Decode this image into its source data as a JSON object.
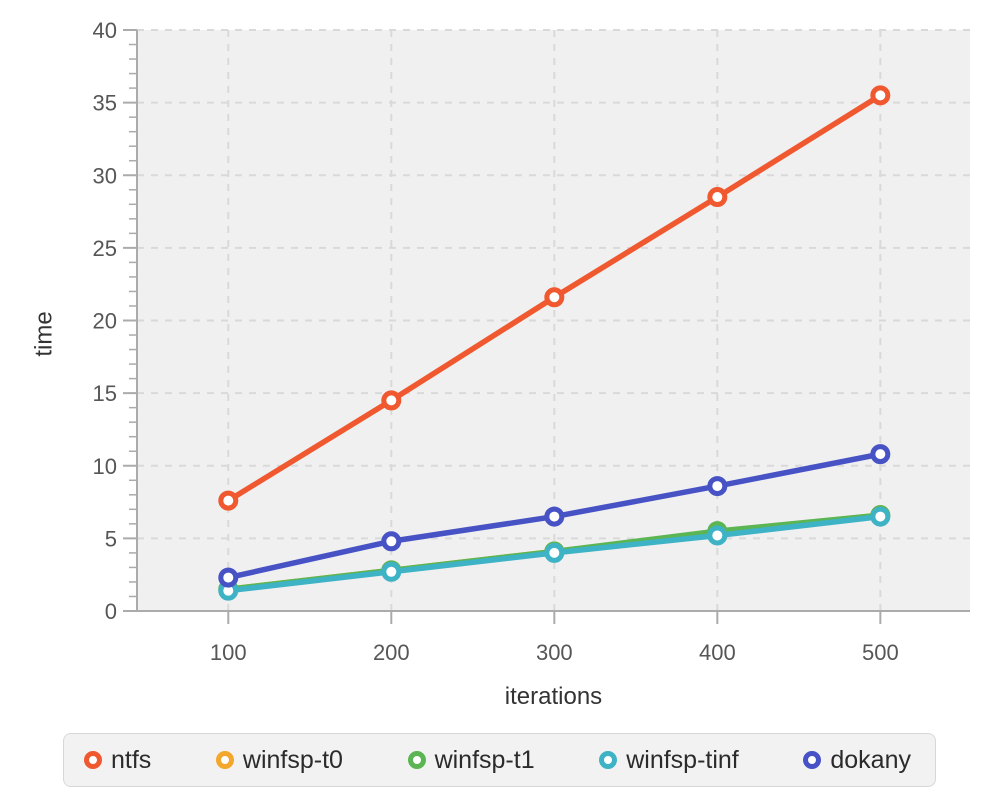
{
  "chart_data": {
    "type": "line",
    "title": "",
    "xlabel": "iterations",
    "ylabel": "time",
    "x": [
      100,
      200,
      300,
      400,
      500
    ],
    "series": [
      {
        "name": "ntfs",
        "color": "#f0592f",
        "values": [
          7.6,
          14.5,
          21.6,
          28.5,
          35.5
        ]
      },
      {
        "name": "winfsp-t0",
        "color": "#f3a72d",
        "values": [
          1.5,
          2.8,
          4.1,
          5.4,
          6.6
        ]
      },
      {
        "name": "winfsp-t1",
        "color": "#5ab552",
        "values": [
          1.5,
          2.8,
          4.1,
          5.5,
          6.6
        ]
      },
      {
        "name": "winfsp-tinf",
        "color": "#3eb3c5",
        "values": [
          1.4,
          2.7,
          4.0,
          5.2,
          6.5
        ]
      },
      {
        "name": "dokany",
        "color": "#4753c5",
        "values": [
          2.3,
          4.8,
          6.5,
          8.6,
          10.8
        ]
      }
    ],
    "xlim": [
      44,
      555
    ],
    "ylim": [
      0,
      40
    ],
    "x_ticks": [
      100,
      200,
      300,
      400,
      500
    ],
    "y_ticks": [
      0,
      5,
      10,
      15,
      20,
      25,
      30,
      35,
      40
    ],
    "y_minor_step": 1,
    "grid": "dashed-major",
    "legend_position": "bottom",
    "marker": "open-circle",
    "colors": {
      "plot_bg": "#f0f0f0",
      "grid": "#d9d9d9",
      "axis": "#ababab",
      "tick_label": "#565656",
      "axis_title": "#333333",
      "legend_bg": "#f2f2f2",
      "legend_border": "#d7d7d7"
    }
  }
}
